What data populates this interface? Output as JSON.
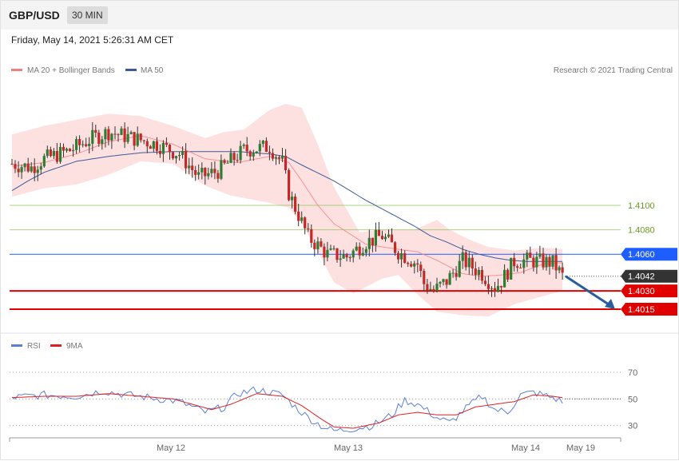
{
  "header": {
    "symbol": "GBP/USD",
    "timeframe": "30 MIN"
  },
  "timestamp": "Friday, May 14, 2021 5:26:31 AM CET",
  "legend": {
    "ma20_bb": "MA 20 + Bollinger Bands",
    "ma50": "MA 50",
    "ma20_color": "#f08080",
    "ma50_color": "#3c5a99",
    "credit": "Research © 2021 Trading Central"
  },
  "rsi_legend": {
    "rsi": "RSI",
    "ma9": "9MA",
    "rsi_color": "#5b7fd6",
    "ma9_color": "#e02020"
  },
  "x_axis": {
    "labels": [
      "May 12",
      "May 13",
      "May 14",
      "May 19"
    ]
  },
  "colors": {
    "up": "#2e7d32",
    "down": "#c62828",
    "resistance": "#8bc34a",
    "pivot": "#1e5eff",
    "support": "#e00000",
    "last": "#333333",
    "arrow": "#2a5d9c",
    "band": "#fddcdc"
  },
  "chart_data": [
    {
      "type": "candlestick",
      "title": "GBP/USD 30 MIN",
      "ylim": [
        1.3998,
        1.4217
      ],
      "levels": [
        {
          "value": 1.41,
          "label": "1.4100",
          "kind": "resistance"
        },
        {
          "value": 1.408,
          "label": "1.4080",
          "kind": "resistance"
        },
        {
          "value": 1.406,
          "label": "1.4060",
          "kind": "pivot"
        },
        {
          "value": 1.4042,
          "label": "1.4042",
          "kind": "last"
        },
        {
          "value": 1.403,
          "label": "1.4030",
          "kind": "support"
        },
        {
          "value": 1.4015,
          "label": "1.4015",
          "kind": "support"
        }
      ],
      "forecast": {
        "from": 1.4042,
        "to": 1.4015
      },
      "series": [
        {
          "name": "Price",
          "anchors": [
            [
              0,
              1.4134
            ],
            [
              6,
              1.4131
            ],
            [
              10,
              1.4138
            ],
            [
              18,
              1.4145
            ],
            [
              25,
              1.4155
            ],
            [
              30,
              1.416
            ],
            [
              36,
              1.4156
            ],
            [
              45,
              1.415
            ],
            [
              52,
              1.4142
            ],
            [
              58,
              1.4123
            ],
            [
              64,
              1.4128
            ],
            [
              72,
              1.4145
            ],
            [
              80,
              1.4148
            ],
            [
              84,
              1.4135
            ],
            [
              86,
              1.411
            ],
            [
              92,
              1.4074
            ],
            [
              98,
              1.406
            ],
            [
              104,
              1.4058
            ],
            [
              110,
              1.407
            ],
            [
              115,
              1.4075
            ],
            [
              120,
              1.4062
            ],
            [
              126,
              1.4052
            ],
            [
              128,
              1.4036
            ],
            [
              131,
              1.403
            ],
            [
              135,
              1.4038
            ],
            [
              140,
              1.4055
            ],
            [
              146,
              1.4044
            ],
            [
              150,
              1.4033
            ],
            [
              152,
              1.4038
            ],
            [
              156,
              1.4054
            ],
            [
              160,
              1.4055
            ],
            [
              168,
              1.4053
            ],
            [
              171,
              1.4042
            ]
          ]
        },
        {
          "name": "MA 20",
          "anchors": [
            [
              0,
              1.4132
            ],
            [
              10,
              1.4135
            ],
            [
              20,
              1.4142
            ],
            [
              30,
              1.4152
            ],
            [
              40,
              1.4157
            ],
            [
              50,
              1.415
            ],
            [
              60,
              1.4138
            ],
            [
              70,
              1.4135
            ],
            [
              80,
              1.414
            ],
            [
              86,
              1.4135
            ],
            [
              90,
              1.412
            ],
            [
              95,
              1.41
            ],
            [
              100,
              1.4085
            ],
            [
              110,
              1.4068
            ],
            [
              120,
              1.4064
            ],
            [
              126,
              1.4062
            ],
            [
              132,
              1.4055
            ],
            [
              140,
              1.4044
            ],
            [
              146,
              1.4042
            ],
            [
              152,
              1.4043
            ],
            [
              158,
              1.4045
            ],
            [
              165,
              1.4052
            ],
            [
              171,
              1.4053
            ]
          ]
        },
        {
          "name": "MA 50",
          "anchors": [
            [
              0,
              1.4112
            ],
            [
              5,
              1.412
            ],
            [
              10,
              1.4127
            ],
            [
              20,
              1.4136
            ],
            [
              30,
              1.414
            ],
            [
              40,
              1.4143
            ],
            [
              50,
              1.4144
            ],
            [
              60,
              1.4144
            ],
            [
              70,
              1.4144
            ],
            [
              80,
              1.4142
            ],
            [
              85,
              1.414
            ],
            [
              90,
              1.4133
            ],
            [
              100,
              1.412
            ],
            [
              110,
              1.4104
            ],
            [
              120,
              1.409
            ],
            [
              125,
              1.4083
            ],
            [
              130,
              1.4075
            ],
            [
              135,
              1.407
            ],
            [
              140,
              1.4064
            ],
            [
              145,
              1.406
            ],
            [
              150,
              1.4057
            ],
            [
              155,
              1.4055
            ],
            [
              160,
              1.4054
            ],
            [
              166,
              1.4054
            ],
            [
              171,
              1.4054
            ]
          ]
        },
        {
          "name": "Bollinger Upper",
          "anchors": [
            [
              0,
              1.4158
            ],
            [
              10,
              1.4165
            ],
            [
              20,
              1.417
            ],
            [
              30,
              1.4175
            ],
            [
              40,
              1.4173
            ],
            [
              50,
              1.4165
            ],
            [
              60,
              1.4155
            ],
            [
              66,
              1.416
            ],
            [
              72,
              1.4162
            ],
            [
              80,
              1.4178
            ],
            [
              85,
              1.4183
            ],
            [
              90,
              1.418
            ],
            [
              95,
              1.415
            ],
            [
              100,
              1.4115
            ],
            [
              108,
              1.4078
            ],
            [
              115,
              1.408
            ],
            [
              125,
              1.408
            ],
            [
              132,
              1.4088
            ],
            [
              136,
              1.408
            ],
            [
              142,
              1.4072
            ],
            [
              148,
              1.4066
            ],
            [
              156,
              1.4063
            ],
            [
              164,
              1.4065
            ],
            [
              168,
              1.4065
            ],
            [
              171,
              1.4064
            ]
          ]
        },
        {
          "name": "Bollinger Lower",
          "anchors": [
            [
              0,
              1.4107
            ],
            [
              10,
              1.4114
            ],
            [
              20,
              1.4117
            ],
            [
              30,
              1.4125
            ],
            [
              40,
              1.4136
            ],
            [
              50,
              1.4134
            ],
            [
              60,
              1.4116
            ],
            [
              68,
              1.4108
            ],
            [
              80,
              1.4102
            ],
            [
              86,
              1.4098
            ],
            [
              90,
              1.4085
            ],
            [
              95,
              1.4062
            ],
            [
              100,
              1.4037
            ],
            [
              106,
              1.4028
            ],
            [
              115,
              1.404
            ],
            [
              120,
              1.4043
            ],
            [
              126,
              1.4027
            ],
            [
              132,
              1.4013
            ],
            [
              140,
              1.401
            ],
            [
              148,
              1.4009
            ],
            [
              156,
              1.4019
            ],
            [
              164,
              1.4025
            ],
            [
              171,
              1.403
            ]
          ]
        }
      ]
    },
    {
      "type": "line",
      "title": "RSI",
      "ylim": [
        22,
        82
      ],
      "ticks": [
        70,
        50,
        30
      ],
      "series": [
        {
          "name": "RSI",
          "anchors": [
            [
              0,
              51
            ],
            [
              10,
              53
            ],
            [
              20,
              52
            ],
            [
              28,
              56
            ],
            [
              36,
              53
            ],
            [
              46,
              50
            ],
            [
              52,
              48
            ],
            [
              56,
              44
            ],
            [
              60,
              40
            ],
            [
              66,
              44
            ],
            [
              70,
              54
            ],
            [
              76,
              57
            ],
            [
              84,
              53
            ],
            [
              88,
              44
            ],
            [
              92,
              36
            ],
            [
              96,
              30
            ],
            [
              100,
              26
            ],
            [
              104,
              27
            ],
            [
              112,
              30
            ],
            [
              118,
              38
            ],
            [
              122,
              49
            ],
            [
              126,
              46
            ],
            [
              132,
              36
            ],
            [
              136,
              32
            ],
            [
              142,
              45
            ],
            [
              146,
              52
            ],
            [
              150,
              42
            ],
            [
              154,
              40
            ],
            [
              158,
              53
            ],
            [
              162,
              55
            ],
            [
              168,
              51
            ],
            [
              171,
              48
            ]
          ]
        },
        {
          "name": "9MA",
          "anchors": [
            [
              0,
              51
            ],
            [
              10,
              52
            ],
            [
              20,
              52
            ],
            [
              30,
              54
            ],
            [
              40,
              52
            ],
            [
              50,
              50
            ],
            [
              56,
              46
            ],
            [
              62,
              42
            ],
            [
              68,
              46
            ],
            [
              76,
              54
            ],
            [
              84,
              52
            ],
            [
              90,
              45
            ],
            [
              96,
              35
            ],
            [
              100,
              29
            ],
            [
              106,
              28
            ],
            [
              114,
              32
            ],
            [
              120,
              38
            ],
            [
              126,
              40
            ],
            [
              132,
              38
            ],
            [
              138,
              38
            ],
            [
              144,
              44
            ],
            [
              150,
              46
            ],
            [
              156,
              48
            ],
            [
              162,
              53
            ],
            [
              168,
              52
            ],
            [
              171,
              51
            ]
          ]
        }
      ]
    }
  ]
}
